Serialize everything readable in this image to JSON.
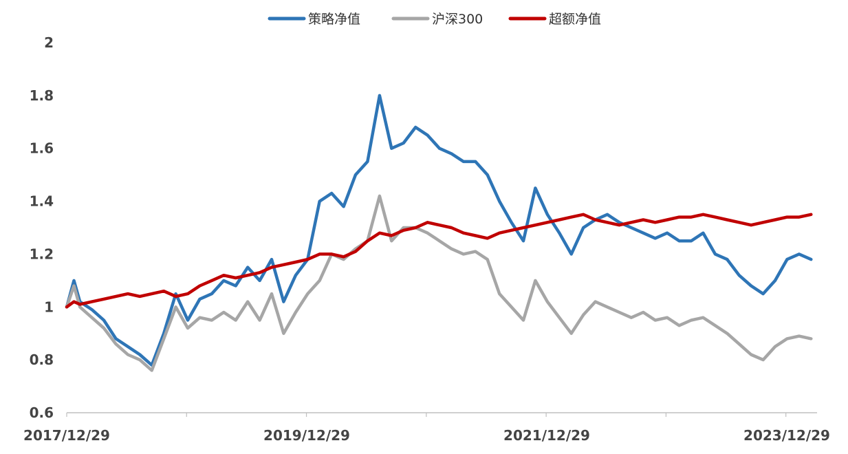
{
  "chart_data": {
    "type": "line",
    "title": "",
    "xlabel": "",
    "ylabel": "",
    "ylim": [
      0.6,
      2.0
    ],
    "yticks": [
      "2",
      "1.8",
      "1.6",
      "1.4",
      "1.2",
      "1",
      "0.8",
      "0.6"
    ],
    "xticks": [
      "2017/12/29",
      "2019/12/29",
      "2021/12/29",
      "2023/12/29"
    ],
    "grid": false,
    "legend_position": "top",
    "x": [
      2017.99,
      2018.05,
      2018.1,
      2018.2,
      2018.3,
      2018.4,
      2018.5,
      2018.6,
      2018.7,
      2018.8,
      2018.9,
      2019.0,
      2019.1,
      2019.2,
      2019.3,
      2019.4,
      2019.5,
      2019.6,
      2019.7,
      2019.8,
      2019.9,
      2020.0,
      2020.1,
      2020.2,
      2020.3,
      2020.4,
      2020.5,
      2020.6,
      2020.7,
      2020.8,
      2020.9,
      2021.0,
      2021.1,
      2021.2,
      2021.3,
      2021.4,
      2021.5,
      2021.6,
      2021.7,
      2021.8,
      2021.9,
      2022.0,
      2022.1,
      2022.2,
      2022.3,
      2022.4,
      2022.5,
      2022.6,
      2022.7,
      2022.8,
      2022.9,
      2023.0,
      2023.1,
      2023.2,
      2023.3,
      2023.4,
      2023.5,
      2023.6,
      2023.7,
      2023.8,
      2023.9,
      2024.0,
      2024.1,
      2024.2
    ],
    "series": [
      {
        "name": "策略净值",
        "color": "#2E75B6",
        "values": [
          1.0,
          1.1,
          1.02,
          0.99,
          0.95,
          0.88,
          0.85,
          0.82,
          0.78,
          0.9,
          1.05,
          0.95,
          1.03,
          1.05,
          1.1,
          1.08,
          1.15,
          1.1,
          1.18,
          1.02,
          1.12,
          1.18,
          1.4,
          1.43,
          1.38,
          1.5,
          1.55,
          1.8,
          1.6,
          1.62,
          1.68,
          1.65,
          1.6,
          1.58,
          1.55,
          1.55,
          1.5,
          1.4,
          1.32,
          1.25,
          1.45,
          1.35,
          1.28,
          1.2,
          1.3,
          1.33,
          1.35,
          1.32,
          1.3,
          1.28,
          1.26,
          1.28,
          1.25,
          1.25,
          1.28,
          1.2,
          1.18,
          1.12,
          1.08,
          1.05,
          1.1,
          1.18,
          1.2,
          1.18
        ]
      },
      {
        "name": "沪深300",
        "color": "#A6A6A6",
        "values": [
          1.0,
          1.08,
          1.0,
          0.96,
          0.92,
          0.86,
          0.82,
          0.8,
          0.76,
          0.88,
          1.0,
          0.92,
          0.96,
          0.95,
          0.98,
          0.95,
          1.02,
          0.95,
          1.05,
          0.9,
          0.98,
          1.05,
          1.1,
          1.2,
          1.18,
          1.22,
          1.25,
          1.42,
          1.25,
          1.3,
          1.3,
          1.28,
          1.25,
          1.22,
          1.2,
          1.21,
          1.18,
          1.05,
          1.0,
          0.95,
          1.1,
          1.02,
          0.96,
          0.9,
          0.97,
          1.02,
          1.0,
          0.98,
          0.96,
          0.98,
          0.95,
          0.96,
          0.93,
          0.95,
          0.96,
          0.93,
          0.9,
          0.86,
          0.82,
          0.8,
          0.85,
          0.88,
          0.89,
          0.88
        ]
      },
      {
        "name": "超额净值",
        "color": "#C00000",
        "values": [
          1.0,
          1.02,
          1.01,
          1.02,
          1.03,
          1.04,
          1.05,
          1.04,
          1.05,
          1.06,
          1.04,
          1.05,
          1.08,
          1.1,
          1.12,
          1.11,
          1.12,
          1.13,
          1.15,
          1.16,
          1.17,
          1.18,
          1.2,
          1.2,
          1.19,
          1.21,
          1.25,
          1.28,
          1.27,
          1.29,
          1.3,
          1.32,
          1.31,
          1.3,
          1.28,
          1.27,
          1.26,
          1.28,
          1.29,
          1.3,
          1.31,
          1.32,
          1.33,
          1.34,
          1.35,
          1.33,
          1.32,
          1.31,
          1.32,
          1.33,
          1.32,
          1.33,
          1.34,
          1.34,
          1.35,
          1.34,
          1.33,
          1.32,
          1.31,
          1.32,
          1.33,
          1.34,
          1.34,
          1.35
        ]
      }
    ]
  }
}
